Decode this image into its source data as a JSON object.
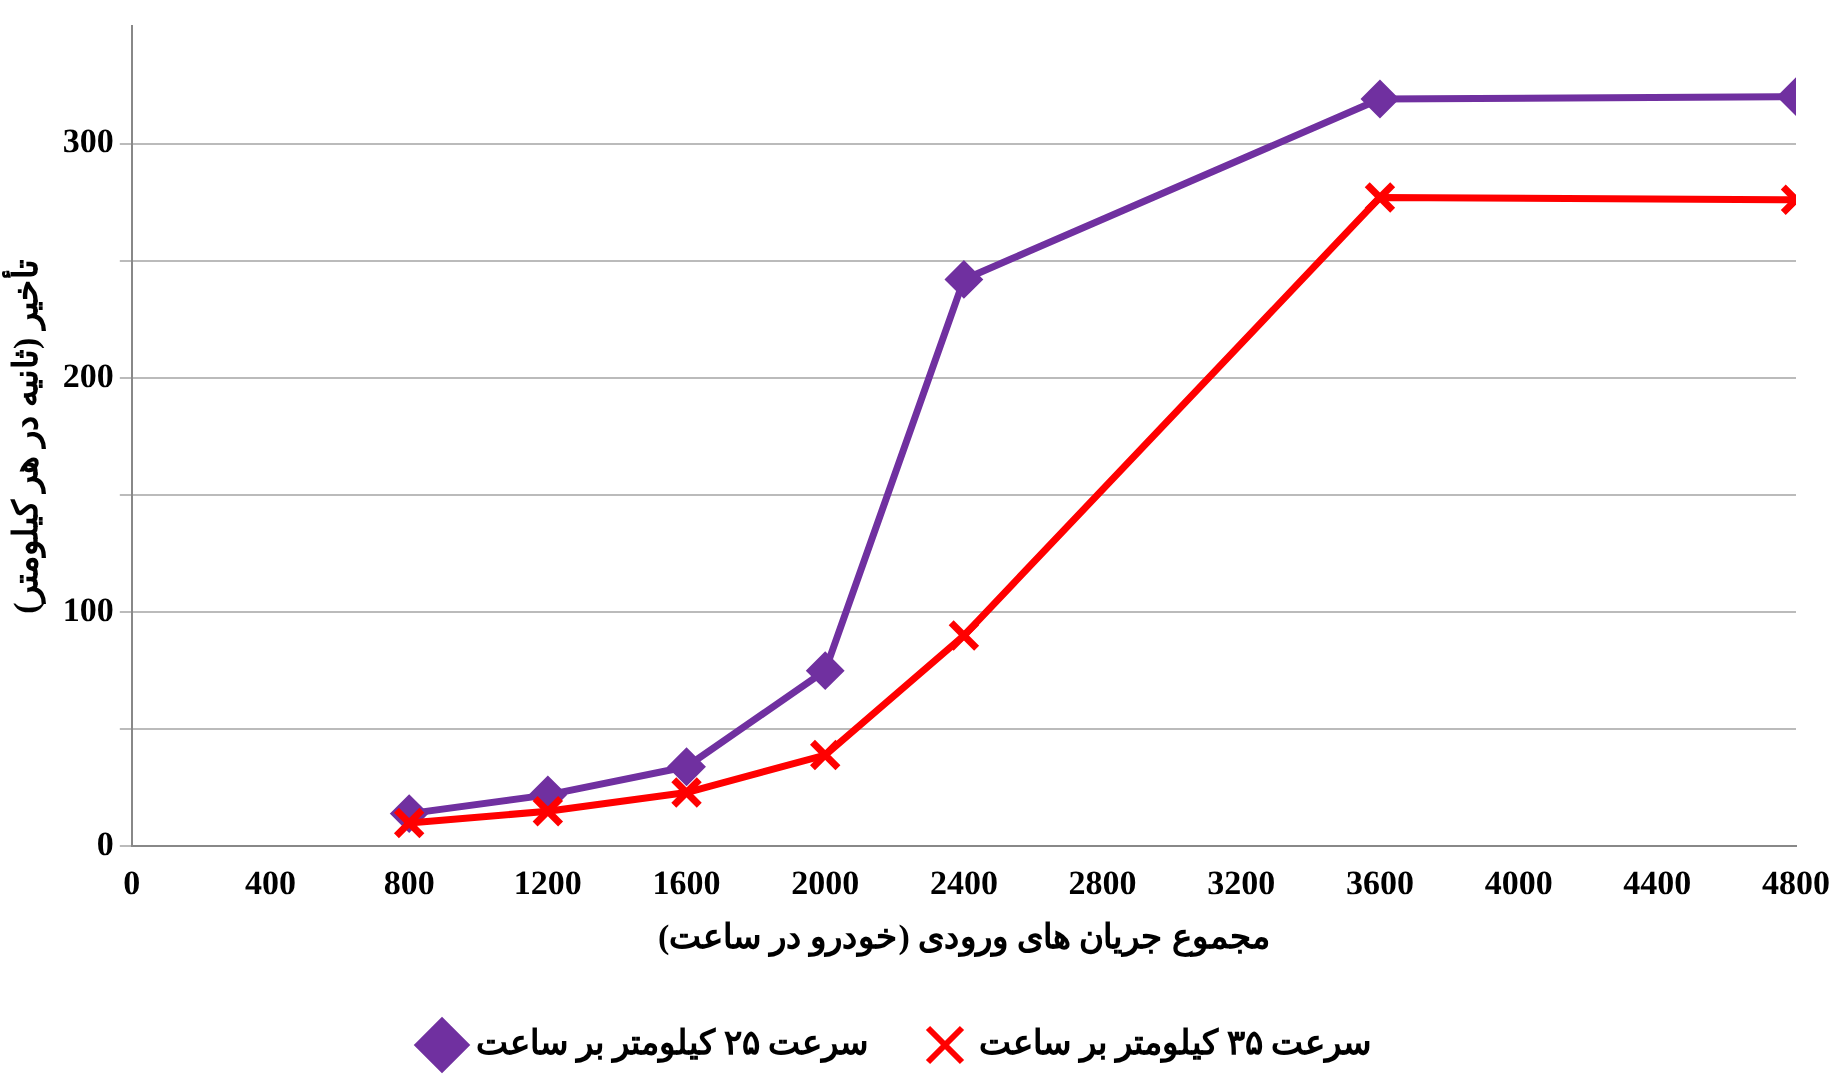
{
  "chart_data": {
    "type": "line",
    "xlabel": "مجموع جریان های ورودی (خودرو در ساعت)",
    "ylabel": "تأخیر (ثانیه در هر کیلومتر)",
    "x": [
      800,
      1200,
      1600,
      2000,
      2400,
      3600,
      4800
    ],
    "series": [
      {
        "name": "سرعت ۲۵ کیلومتر بر ساعت",
        "color": "#7030a0",
        "marker": "diamond",
        "values": [
          14,
          22,
          34,
          75,
          242,
          319,
          320
        ]
      },
      {
        "name": "سرعت ۳۵ کیلومتر بر ساعت",
        "color": "#ff0000",
        "marker": "cross",
        "values": [
          10,
          15,
          23,
          39,
          90,
          277,
          276
        ]
      }
    ],
    "xlim": [
      0,
      4800
    ],
    "xticks": [
      0,
      400,
      800,
      1200,
      1600,
      2000,
      2400,
      2800,
      3200,
      3600,
      4000,
      4400,
      4800
    ],
    "ylim": [
      0,
      350
    ],
    "yticks": [
      0,
      {
        "value": 50,
        "label": null
      },
      100,
      {
        "value": 150,
        "label": null
      },
      200,
      {
        "value": 250,
        "label": null
      },
      300
    ],
    "grid": "y",
    "legend": "bottom",
    "line_style": "solid"
  }
}
